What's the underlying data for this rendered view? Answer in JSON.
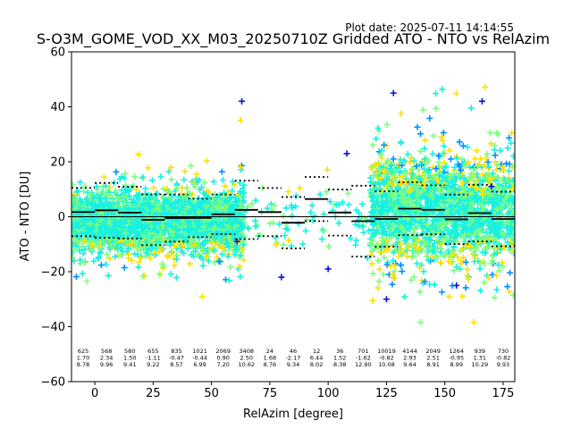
{
  "header": {
    "plot_date": "Plot date: 2025-07-11 14:14:55",
    "title": "S-O3M_GOME_VOD_XX_M03_20250710Z Gridded ATO - NTO vs RelAzim"
  },
  "chart_data": {
    "type": "scatter",
    "title": "S-O3M_GOME_VOD_XX_M03_20250710Z Gridded ATO - NTO vs RelAzim",
    "xlabel": "RelAzim [degree]",
    "ylabel": "ATO - NTO [DU]",
    "xlim": [
      -10,
      180
    ],
    "ylim": [
      -60,
      60
    ],
    "xticks": [
      0,
      25,
      50,
      75,
      100,
      125,
      150,
      175
    ],
    "yticks": [
      -60,
      -40,
      -20,
      0,
      20,
      40,
      60
    ],
    "grid": false,
    "marker": "+",
    "colors": {
      "dense_core": "#19f0e0",
      "mid": "#7cff7c",
      "sparse_high": "#ffe000",
      "outlier_blue": "#0a10d8",
      "outlier_azure": "#0090ff",
      "mean_line": "#000000",
      "std_line": "#000000",
      "zero_line": "#000000"
    },
    "bins": [
      {
        "center": -5,
        "n": "625",
        "mean": "1.70",
        "std": "8.78",
        "mean_val": 1.7,
        "std_val": 8.78
      },
      {
        "center": 5,
        "n": "568",
        "mean": "2.34",
        "std": "9.96",
        "mean_val": 2.34,
        "std_val": 9.96
      },
      {
        "center": 15,
        "n": "580",
        "mean": "1.50",
        "std": "9.41",
        "mean_val": 1.5,
        "std_val": 9.41
      },
      {
        "center": 25,
        "n": "655",
        "mean": "-1.11",
        "std": "9.22",
        "mean_val": -1.11,
        "std_val": 9.22
      },
      {
        "center": 35,
        "n": "835",
        "mean": "-0.47",
        "std": "8.57",
        "mean_val": -0.47,
        "std_val": 8.57
      },
      {
        "center": 45,
        "n": "1021",
        "mean": "-0.44",
        "std": "6.99",
        "mean_val": -0.44,
        "std_val": 6.99
      },
      {
        "center": 55,
        "n": "2069",
        "mean": "0.90",
        "std": "7.20",
        "mean_val": 0.9,
        "std_val": 7.2
      },
      {
        "center": 65,
        "n": "3408",
        "mean": "2.50",
        "std": "10.62",
        "mean_val": 2.5,
        "std_val": 10.62
      },
      {
        "center": 75,
        "n": "24",
        "mean": "1.68",
        "std": "8.76",
        "mean_val": 1.68,
        "std_val": 8.76
      },
      {
        "center": 85,
        "n": "46",
        "mean": "-2.17",
        "std": "9.34",
        "mean_val": -2.17,
        "std_val": 9.34
      },
      {
        "center": 95,
        "n": "12",
        "mean": "6.44",
        "std": "8.02",
        "mean_val": 6.44,
        "std_val": 8.02
      },
      {
        "center": 105,
        "n": "36",
        "mean": "1.52",
        "std": "8.38",
        "mean_val": 1.52,
        "std_val": 8.38
      },
      {
        "center": 115,
        "n": "701",
        "mean": "-1.62",
        "std": "12.90",
        "mean_val": -1.62,
        "std_val": 12.9
      },
      {
        "center": 125,
        "n": "10019",
        "mean": "-0.82",
        "std": "10.08",
        "mean_val": -0.82,
        "std_val": 10.08
      },
      {
        "center": 135,
        "n": "4144",
        "mean": "2.93",
        "std": "9.64",
        "mean_val": 2.93,
        "std_val": 9.64
      },
      {
        "center": 145,
        "n": "2049",
        "mean": "2.51",
        "std": "8.91",
        "mean_val": 2.51,
        "std_val": 8.91
      },
      {
        "center": 155,
        "n": "1264",
        "mean": "-0.95",
        "std": "8.99",
        "mean_val": -0.95,
        "std_val": 8.99
      },
      {
        "center": 165,
        "n": "939",
        "mean": "1.31",
        "std": "10.29",
        "mean_val": 1.31,
        "std_val": 10.29
      },
      {
        "center": 175,
        "n": "730",
        "mean": "-0.82",
        "std": "9.93",
        "mean_val": -0.82,
        "std_val": 9.93
      }
    ],
    "scatter_regions": [
      {
        "x": [
          -10,
          62
        ],
        "y_core": [
          -12,
          14
        ],
        "y_spread": [
          -30,
          26
        ],
        "density": "high"
      },
      {
        "x": [
          62,
          64
        ],
        "y_core": [
          -20,
          25
        ],
        "y_spread": [
          -42,
          43
        ],
        "density": "high"
      },
      {
        "x": [
          64,
          118
        ],
        "y_core": [
          -12,
          12
        ],
        "y_spread": [
          -25,
          25
        ],
        "density": "sparse"
      },
      {
        "x": [
          118,
          180
        ],
        "y_core": [
          -18,
          22
        ],
        "y_spread": [
          -44,
          49
        ],
        "density": "high"
      }
    ]
  }
}
